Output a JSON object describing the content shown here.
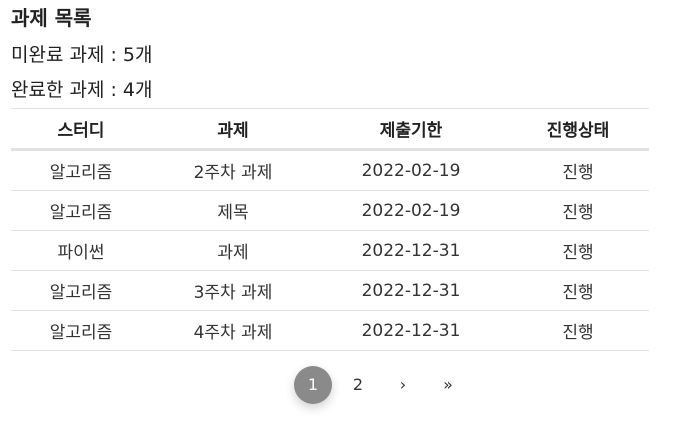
{
  "heading": "과제 목록",
  "summary": {
    "pending": "미완료 과제 : 5개",
    "done": "완료한 과제 : 4개"
  },
  "table": {
    "headers": [
      "스터디",
      "과제",
      "제출기한",
      "진행상태"
    ],
    "rows": [
      [
        "알고리즘",
        "2주차 과제",
        "2022-02-19",
        "진행"
      ],
      [
        "알고리즘",
        "제목",
        "2022-02-19",
        "진행"
      ],
      [
        "파이썬",
        "과제",
        "2022-12-31",
        "진행"
      ],
      [
        "알고리즘",
        "3주차 과제",
        "2022-12-31",
        "진행"
      ],
      [
        "알고리즘",
        "4주차 과제",
        "2022-12-31",
        "진행"
      ]
    ]
  },
  "pagination": {
    "pages": [
      "1",
      "2"
    ],
    "current": "1",
    "next": "›",
    "last": "»"
  },
  "colors": {
    "active_page_bg": "#8a8a8a",
    "border": "#dee2e6"
  }
}
